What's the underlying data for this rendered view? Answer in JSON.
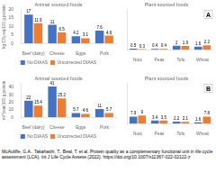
{
  "chart_data": [
    {
      "type": "bar",
      "title": "Animal sourced foods",
      "ylabel": "kg CO₂-eq/100 g protein",
      "categories": [
        "Beef (dairy)",
        "Cheese",
        "Eggs",
        "Pork"
      ],
      "series": [
        {
          "name": "No DIAAS",
          "color": "#4472c4",
          "values": [
            17,
            11,
            4.2,
            7.6
          ]
        },
        {
          "name": "Uncorrected DIAAS",
          "color": "#ed7d31",
          "values": [
            11.9,
            6.5,
            3.1,
            4.6
          ]
        }
      ],
      "ylim": [
        0,
        20
      ],
      "yticks": [
        0,
        5,
        10,
        15,
        20
      ],
      "grid": false,
      "legend": "bottom",
      "data_labels": true
    },
    {
      "type": "bar",
      "title": "Plant sourced foods",
      "annotations": [
        "A"
      ],
      "categories": [
        "Nuts",
        "Peas",
        "Tofu",
        "Wheat"
      ],
      "series": [
        {
          "name": "No DIAAS",
          "color": "#4472c4",
          "values": [
            0.5,
            0.4,
            2.0,
            1.6
          ]
        },
        {
          "name": "Uncorrected DIAAS",
          "color": "#ed7d31",
          "values": [
            0.3,
            0.4,
            1.9,
            2.2
          ]
        }
      ],
      "ylim": [
        0,
        20
      ],
      "yticks": [
        0,
        5,
        10,
        15,
        20
      ],
      "grid": false,
      "legend": false,
      "data_labels": true,
      "tick_labels": "x"
    },
    {
      "type": "bar",
      "title": "Animal sourced foods",
      "ylabel": "m²*year/100 g protein",
      "categories": [
        "Beef (dairy)",
        "Cheese",
        "Eggs",
        "Pork"
      ],
      "series": [
        {
          "name": "No DIAAS",
          "color": "#4472c4",
          "values": [
            22,
            41,
            5.7,
            11
          ]
        },
        {
          "name": "Uncorrected DIAAS",
          "color": "#ed7d31",
          "values": [
            15.4,
            25.2,
            4.6,
            5.7
          ]
        }
      ],
      "ylim": [
        0,
        45
      ],
      "yticks": [
        0,
        10,
        20,
        30,
        40
      ],
      "grid": false,
      "legend": "bottom",
      "data_labels": true
    },
    {
      "type": "bar",
      "title": "Plant sourced foods",
      "annotations": [
        "B",
        "McAuliffe, G.A., Takahashi, T., Beal, T. et al. Protein quality as a complementary functional unit in life cycle\nassessment (LCA). Int J Life Cycle Assess (2022). https://doi.org/10.1007/s11367-022-02122-z"
      ],
      "categories": [
        "Nuts",
        "Peas",
        "Tofu",
        "Wheat"
      ],
      "series": [
        {
          "name": "No DIAAS",
          "color": "#4472c4",
          "values": [
            7.9,
            3.4,
            2.2,
            1.6
          ]
        },
        {
          "name": "Uncorrected DIAAS",
          "color": "#ed7d31",
          "values": [
            9.0,
            3.5,
            2.1,
            7.8
          ]
        }
      ],
      "ylim": [
        0,
        45
      ],
      "yticks": [
        0,
        10,
        20,
        30,
        40
      ],
      "grid": false,
      "legend": false,
      "data_labels": true,
      "tick_labels": "x"
    }
  ]
}
